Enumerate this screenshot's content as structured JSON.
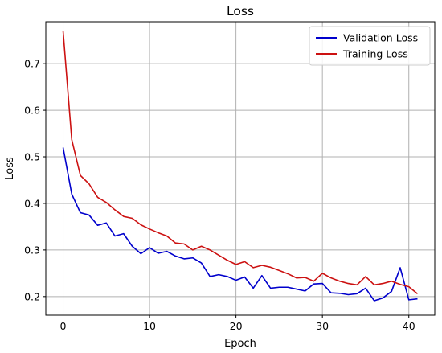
{
  "chart_data": {
    "type": "line",
    "title": "Loss",
    "xlabel": "Epoch",
    "ylabel": "Loss",
    "xlim": [
      -2,
      43
    ],
    "ylim": [
      0.16,
      0.79
    ],
    "xticks": [
      0,
      10,
      20,
      30,
      40
    ],
    "yticks": [
      0.2,
      0.3,
      0.4,
      0.5,
      0.6,
      0.7
    ],
    "grid": true,
    "legend_position": "top-right",
    "x": [
      0,
      1,
      2,
      3,
      4,
      5,
      6,
      7,
      8,
      9,
      10,
      11,
      12,
      13,
      14,
      15,
      16,
      17,
      18,
      19,
      20,
      21,
      22,
      23,
      24,
      25,
      26,
      27,
      28,
      29,
      30,
      31,
      32,
      33,
      34,
      35,
      36,
      37,
      38,
      39,
      40,
      41
    ],
    "series": [
      {
        "name": "Validation Loss",
        "color": "#0000cc",
        "values": [
          0.52,
          0.42,
          0.38,
          0.375,
          0.353,
          0.358,
          0.33,
          0.335,
          0.308,
          0.292,
          0.305,
          0.293,
          0.297,
          0.287,
          0.281,
          0.283,
          0.272,
          0.243,
          0.247,
          0.243,
          0.235,
          0.242,
          0.218,
          0.245,
          0.218,
          0.22,
          0.22,
          0.216,
          0.212,
          0.227,
          0.228,
          0.208,
          0.207,
          0.204,
          0.206,
          0.218,
          0.191,
          0.197,
          0.211,
          0.262,
          0.193,
          0.195
        ]
      },
      {
        "name": "Training Loss",
        "color": "#cc1111",
        "values": [
          0.77,
          0.537,
          0.46,
          0.442,
          0.413,
          0.402,
          0.386,
          0.372,
          0.368,
          0.354,
          0.345,
          0.337,
          0.33,
          0.315,
          0.313,
          0.3,
          0.308,
          0.3,
          0.289,
          0.278,
          0.269,
          0.275,
          0.262,
          0.267,
          0.263,
          0.256,
          0.249,
          0.24,
          0.241,
          0.233,
          0.25,
          0.24,
          0.233,
          0.228,
          0.225,
          0.243,
          0.225,
          0.228,
          0.233,
          0.226,
          0.221,
          0.206
        ]
      }
    ]
  }
}
